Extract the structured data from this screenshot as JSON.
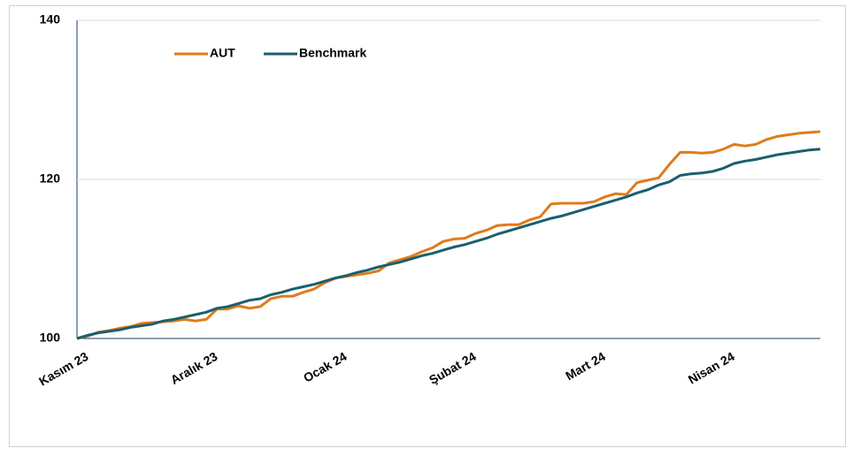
{
  "chart_data": {
    "type": "line",
    "categories": [
      "Kasım 23",
      null,
      null,
      null,
      null,
      null,
      null,
      null,
      null,
      null,
      null,
      null,
      "Aralık 23",
      null,
      null,
      null,
      null,
      null,
      null,
      null,
      null,
      null,
      null,
      null,
      "Ocak 24",
      null,
      null,
      null,
      null,
      null,
      null,
      null,
      null,
      null,
      null,
      null,
      "Şubat 24",
      null,
      null,
      null,
      null,
      null,
      null,
      null,
      null,
      null,
      null,
      null,
      "Mart 24",
      null,
      null,
      null,
      null,
      null,
      null,
      null,
      null,
      null,
      null,
      null,
      "Nisan 24",
      null,
      null,
      null,
      null,
      null,
      null,
      null,
      null,
      null
    ],
    "series": [
      {
        "name": "AUT",
        "color": "#e07b1a",
        "values": [
          100,
          100.3,
          100.8,
          101.0,
          101.3,
          101.5,
          101.9,
          102.0,
          102.1,
          102.2,
          102.4,
          102.2,
          102.4,
          103.7,
          103.7,
          104.1,
          103.8,
          104.0,
          105.0,
          105.3,
          105.3,
          105.8,
          106.2,
          107.0,
          107.6,
          107.8,
          108.0,
          108.2,
          108.5,
          109.5,
          109.9,
          110.3,
          110.9,
          111.4,
          112.2,
          112.5,
          112.6,
          113.2,
          113.6,
          114.2,
          114.3,
          114.3,
          114.9,
          115.3,
          116.9,
          117.0,
          117.0,
          117.0,
          117.2,
          117.8,
          118.2,
          118.1,
          119.6,
          119.9,
          120.2,
          121.9,
          123.4,
          123.4,
          123.3,
          123.4,
          123.8,
          124.4,
          124.2,
          124.4,
          125.0,
          125.4,
          125.6,
          125.8,
          125.9,
          126.0
        ]
      },
      {
        "name": "Benchmark",
        "color": "#1a5f6e",
        "values": [
          100,
          100.4,
          100.7,
          100.9,
          101.1,
          101.4,
          101.6,
          101.8,
          102.2,
          102.4,
          102.7,
          103.0,
          103.3,
          103.8,
          104.0,
          104.4,
          104.8,
          105.0,
          105.5,
          105.8,
          106.2,
          106.5,
          106.8,
          107.2,
          107.6,
          107.9,
          108.3,
          108.6,
          109.0,
          109.3,
          109.6,
          110.0,
          110.4,
          110.7,
          111.1,
          111.5,
          111.8,
          112.2,
          112.6,
          113.1,
          113.5,
          113.9,
          114.3,
          114.7,
          115.1,
          115.4,
          115.8,
          116.2,
          116.6,
          117.0,
          117.4,
          117.8,
          118.3,
          118.7,
          119.3,
          119.7,
          120.5,
          120.7,
          120.8,
          121.0,
          121.4,
          122.0,
          122.3,
          122.5,
          122.8,
          123.1,
          123.3,
          123.5,
          123.7,
          123.8
        ]
      }
    ],
    "ylim": [
      100,
      140
    ],
    "yticks": [
      100,
      120,
      140
    ],
    "grid": true,
    "legend": "top"
  }
}
